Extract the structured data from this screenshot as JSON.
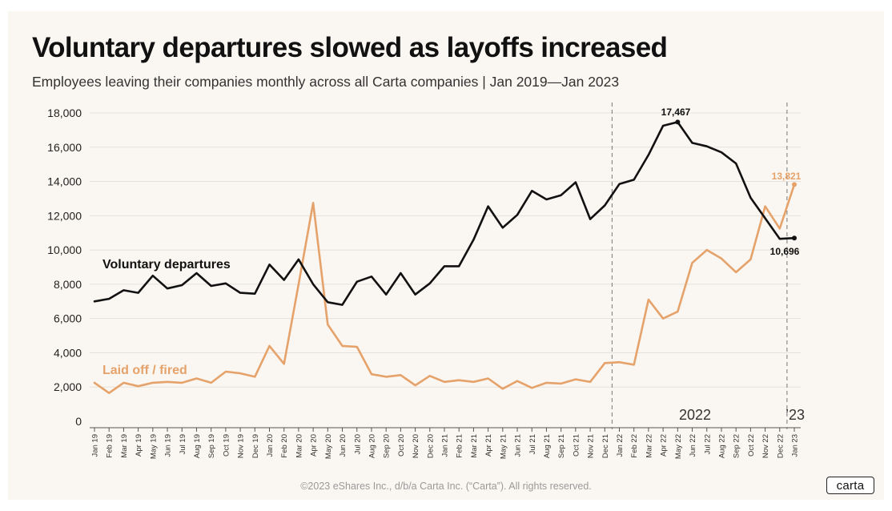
{
  "header": {
    "title": "Voluntary departures slowed as layoffs increased",
    "subtitle": "Employees leaving their companies monthly across all Carta companies  |  Jan 2019—Jan 2023"
  },
  "footer": {
    "copyright": "©2023 eShares Inc., d/b/a Carta Inc. (“Carta”). All rights reserved.",
    "logo_text": "carta"
  },
  "chart_data": {
    "type": "line",
    "title": "Voluntary departures slowed as layoffs increased",
    "subtitle": "Employees leaving their companies monthly across all Carta companies  |  Jan 2019—Jan 2023",
    "xlabel": "",
    "ylabel": "",
    "ylim": [
      0,
      18000
    ],
    "yticks": [
      0,
      2000,
      4000,
      6000,
      8000,
      10000,
      12000,
      14000,
      16000,
      18000
    ],
    "ytick_labels": [
      "0",
      "2,000",
      "4,000",
      "6,000",
      "8,000",
      "10,000",
      "12,000",
      "14,000",
      "16,000",
      "18,000"
    ],
    "grid": true,
    "categories": [
      "Jan 19",
      "Feb 19",
      "Mar 19",
      "Apr 19",
      "May 19",
      "Jun 19",
      "Jul 19",
      "Aug 19",
      "Sep 19",
      "Oct 19",
      "Nov 19",
      "Dec 19",
      "Jan 20",
      "Feb 20",
      "Mar 20",
      "Apr 20",
      "May 20",
      "Jun 20",
      "Jul 20",
      "Aug 20",
      "Sep 20",
      "Oct 20",
      "Nov 20",
      "Dec 20",
      "Jan 21",
      "Feb 21",
      "Mar 21",
      "Apr 21",
      "May 21",
      "Jun 21",
      "Jul 21",
      "Aug 21",
      "Sep 21",
      "Oct 21",
      "Nov 21",
      "Dec 21",
      "Jan 22",
      "Feb 22",
      "Mar 22",
      "Apr 22",
      "May 22",
      "Jun 22",
      "Jul 22",
      "Aug 22",
      "Sep 22",
      "Oct 22",
      "Nov 22",
      "Dec 22",
      "Jan 23"
    ],
    "series": [
      {
        "name": "Voluntary departures",
        "color": "#111111",
        "values": [
          7000,
          7150,
          7650,
          7500,
          8500,
          7750,
          7950,
          8650,
          7900,
          8050,
          7500,
          7450,
          9150,
          8250,
          9450,
          8000,
          6950,
          6800,
          8150,
          8450,
          7400,
          8650,
          7400,
          8050,
          9050,
          9050,
          10600,
          12550,
          11300,
          12050,
          13450,
          12950,
          13200,
          13950,
          11800,
          12600,
          13850,
          14100,
          15550,
          17250,
          17467,
          16250,
          16050,
          15700,
          15050,
          13050,
          11850,
          10650,
          10696
        ]
      },
      {
        "name": "Laid off / fired",
        "color": "#e5a26a",
        "values": [
          2250,
          1650,
          2250,
          2050,
          2250,
          2300,
          2250,
          2500,
          2250,
          2900,
          2800,
          2600,
          4400,
          3350,
          8000,
          12750,
          5650,
          4400,
          4350,
          2750,
          2600,
          2700,
          2100,
          2650,
          2300,
          2400,
          2300,
          2500,
          1900,
          2350,
          1950,
          2250,
          2200,
          2450,
          2300,
          3400,
          3450,
          3300,
          7100,
          6000,
          6400,
          9250,
          10000,
          9500,
          8700,
          9450,
          12550,
          11250,
          13821
        ]
      }
    ],
    "annotations": {
      "peak_label": "17,467",
      "end_voluntary_label": "10,696",
      "end_layoff_label": "13,821",
      "series_label_voluntary": "Voluntary departures",
      "series_label_layoff": "Laid off / fired",
      "period_label_2022": "2022",
      "period_label_2023": "’23"
    }
  }
}
